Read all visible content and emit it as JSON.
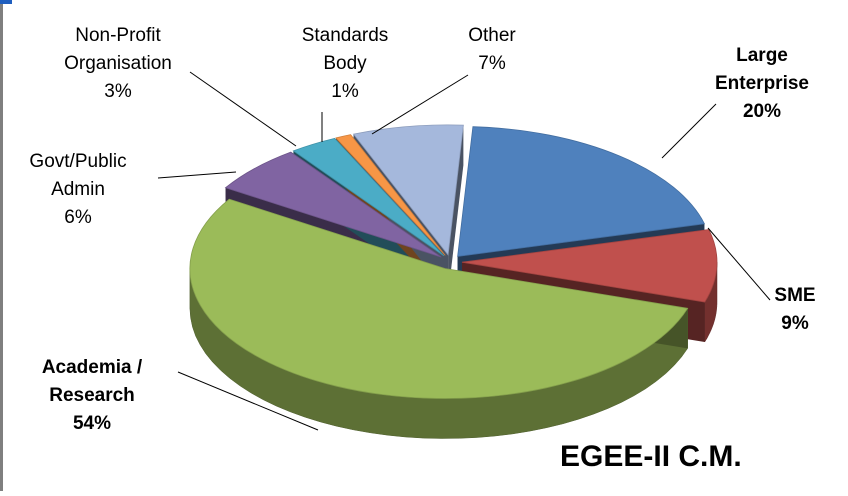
{
  "chart_data": {
    "type": "pie3d",
    "title": "EGEE-II C.M.",
    "categories": [
      "Large Enterprise",
      "SME",
      "Academia / Research",
      "Govt/Public Admin",
      "Non-Profit Organisation",
      "Standards Body",
      "Other"
    ],
    "values": [
      20,
      9,
      54,
      6,
      3,
      1,
      7
    ],
    "value_labels": [
      "20%",
      "9%",
      "54%",
      "6%",
      "3%",
      "1%",
      "7%"
    ],
    "colors": [
      "#4f81bd",
      "#c0504d",
      "#9bbb59",
      "#8064a2",
      "#4bacc6",
      "#f79646",
      "#a5b8dc"
    ],
    "bold": [
      true,
      true,
      true,
      false,
      false,
      false,
      false
    ]
  }
}
